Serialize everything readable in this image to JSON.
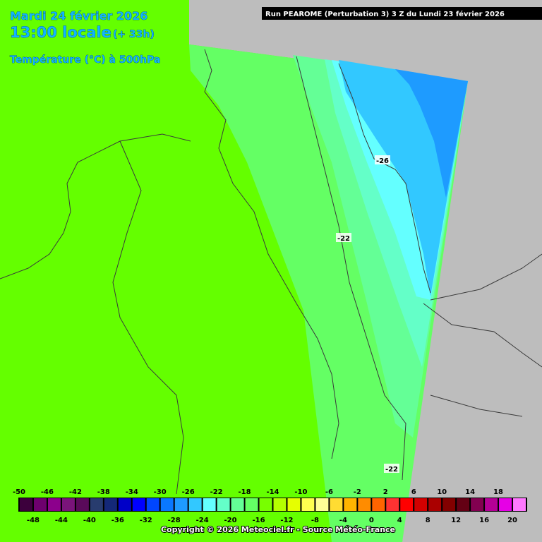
{
  "header": {
    "date": "Mardi 24 février 2026",
    "time": "13:00 locale",
    "lead": "(+ 33h)",
    "parameter": "Température (°C) à 500hPa",
    "run": "Run PEAROME (Perturbation 3) 3 Z du Lundi 23 février 2026"
  },
  "contour_labels": [
    -26,
    -22,
    -22
  ],
  "legend": {
    "ticks": [
      -50,
      -48,
      -46,
      -44,
      -42,
      -40,
      -38,
      -36,
      -34,
      -32,
      -30,
      -28,
      -26,
      -24,
      -22,
      -20,
      -18,
      -16,
      -14,
      -12,
      -10,
      -8,
      -6,
      -4,
      -2,
      0,
      2,
      4,
      6,
      8,
      10,
      12,
      14,
      16,
      18,
      20
    ],
    "colors": [
      "#3c003c",
      "#6e006e",
      "#8c008c",
      "#7a147a",
      "#5a0a5a",
      "#283c6e",
      "#142878",
      "#0000c8",
      "#0000ff",
      "#0046ff",
      "#0a78ff",
      "#1e9bff",
      "#32c8ff",
      "#64ffff",
      "#64ffc8",
      "#64ff96",
      "#64ff64",
      "#78ff00",
      "#b4ff00",
      "#e6ff00",
      "#ffff50",
      "#ffff96",
      "#ffdc32",
      "#ffb400",
      "#ff8c00",
      "#ff6400",
      "#ff3232",
      "#ff0000",
      "#d20000",
      "#aa0000",
      "#820000",
      "#640014",
      "#820050",
      "#b40096",
      "#e600e6",
      "#ff78ff"
    ]
  },
  "footer": "Copyright © 2026 Meteociel.fr - Source Météo-France"
}
